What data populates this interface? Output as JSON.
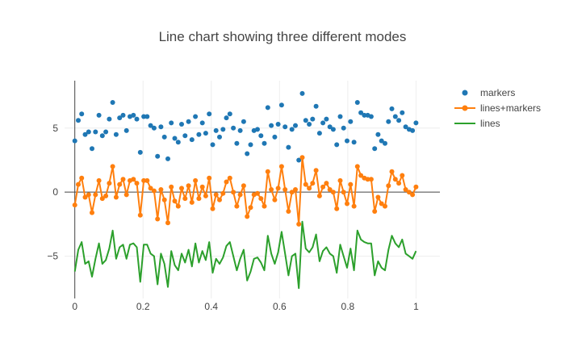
{
  "chart_data": {
    "type": "line",
    "title": "Line chart showing three different modes",
    "xlabel": "",
    "ylabel": "",
    "xlim": [
      -0.03,
      1.07
    ],
    "ylim": [
      -8.3,
      8.7
    ],
    "x_ticks": [
      0,
      0.2,
      0.4,
      0.6,
      0.8,
      1
    ],
    "x_tick_labels": [
      "0",
      "0.2",
      "0.4",
      "0.6",
      "0.8",
      "1"
    ],
    "y_ticks": [
      -5,
      0,
      5
    ],
    "y_tick_labels": [
      "−5",
      "0",
      "5"
    ],
    "grid": true,
    "legend_position": "top-right",
    "x": [
      0,
      0.0101,
      0.0202,
      0.0303,
      0.0404,
      0.0505,
      0.0606,
      0.0707,
      0.0808,
      0.0909,
      0.101,
      0.1111,
      0.1212,
      0.1313,
      0.1414,
      0.1515,
      0.1616,
      0.1717,
      0.1818,
      0.1919,
      0.202,
      0.2121,
      0.2222,
      0.2323,
      0.2424,
      0.2525,
      0.2626,
      0.2727,
      0.2828,
      0.2929,
      0.303,
      0.3131,
      0.3232,
      0.3333,
      0.3434,
      0.3535,
      0.3636,
      0.3737,
      0.3838,
      0.3939,
      0.404,
      0.4141,
      0.4242,
      0.4343,
      0.4444,
      0.4545,
      0.4646,
      0.4747,
      0.4848,
      0.4949,
      0.5051,
      0.5152,
      0.5253,
      0.5354,
      0.5455,
      0.5556,
      0.5657,
      0.5758,
      0.5859,
      0.596,
      0.6061,
      0.6162,
      0.6263,
      0.6364,
      0.6465,
      0.6566,
      0.6667,
      0.6768,
      0.6869,
      0.697,
      0.7071,
      0.7172,
      0.7273,
      0.7374,
      0.7475,
      0.7576,
      0.7677,
      0.7778,
      0.7879,
      0.798,
      0.8081,
      0.8182,
      0.8283,
      0.8384,
      0.8485,
      0.8586,
      0.8687,
      0.8788,
      0.8889,
      0.899,
      0.9091,
      0.9192,
      0.9293,
      0.9394,
      0.9495,
      0.9596,
      0.9697,
      0.9798,
      0.9899,
      1
    ],
    "series": [
      {
        "name": "markers",
        "mode": "markers",
        "color": "#1f77b4",
        "values": [
          4.0,
          5.6,
          6.1,
          4.5,
          4.7,
          3.4,
          4.7,
          6.0,
          4.4,
          4.7,
          5.7,
          7.0,
          4.5,
          5.8,
          6.0,
          4.8,
          5.9,
          6.0,
          5.7,
          3.1,
          5.9,
          5.9,
          5.2,
          5.0,
          2.8,
          5.1,
          4.3,
          2.6,
          5.4,
          4.2,
          3.9,
          5.3,
          4.4,
          5.5,
          4.1,
          5.9,
          4.5,
          5.4,
          4.6,
          6.1,
          3.7,
          4.8,
          4.3,
          4.9,
          5.8,
          6.1,
          5.0,
          3.8,
          4.8,
          5.5,
          3.0,
          3.7,
          4.8,
          4.9,
          4.4,
          3.8,
          6.6,
          5.2,
          4.3,
          5.3,
          6.8,
          5.1,
          3.5,
          4.9,
          5.2,
          2.5,
          7.7,
          5.6,
          5.3,
          5.7,
          6.7,
          4.6,
          5.4,
          5.7,
          5.1,
          4.9,
          3.7,
          5.9,
          5.0,
          4.0,
          5.5,
          3.9,
          7.0,
          6.2,
          6.0,
          6.0,
          5.9,
          3.4,
          4.5,
          4.0,
          3.8,
          5.5,
          6.5,
          5.9,
          5.6,
          6.2,
          5.1,
          4.9,
          4.8,
          5.4
        ]
      },
      {
        "name": "lines+markers",
        "mode": "lines+markers",
        "color": "#ff7f0e",
        "values": [
          -1.0,
          0.6,
          1.1,
          -0.4,
          -0.2,
          -1.6,
          -0.2,
          0.9,
          -0.5,
          -0.3,
          0.7,
          2.0,
          -0.4,
          0.6,
          1.0,
          -0.2,
          0.9,
          1.0,
          0.7,
          -1.8,
          0.9,
          0.9,
          0.3,
          0.1,
          -2.1,
          0.2,
          -0.6,
          -2.4,
          0.4,
          -0.7,
          -1.1,
          0.3,
          -0.5,
          0.5,
          -0.8,
          0.9,
          -0.5,
          0.4,
          -0.3,
          1.1,
          -1.3,
          -0.2,
          -0.6,
          -0.1,
          0.8,
          1.1,
          0.0,
          -1.1,
          -0.2,
          0.5,
          -1.9,
          -1.2,
          -0.2,
          -0.1,
          -0.5,
          -1.1,
          1.6,
          0.2,
          -0.6,
          0.3,
          2.0,
          0.2,
          -1.5,
          0.0,
          0.2,
          -2.5,
          2.7,
          0.6,
          0.3,
          0.7,
          1.7,
          -0.3,
          0.4,
          0.7,
          0.2,
          0.0,
          -1.3,
          0.9,
          0.0,
          -0.9,
          0.6,
          -1.1,
          2.0,
          1.3,
          1.1,
          1.0,
          1.0,
          -1.5,
          -0.4,
          -0.9,
          -1.1,
          0.5,
          1.6,
          1.0,
          0.7,
          1.3,
          0.2,
          0.0,
          -0.2,
          0.4
        ]
      },
      {
        "name": "lines",
        "mode": "lines",
        "color": "#2ca02c",
        "values": [
          -6.2,
          -4.5,
          -3.9,
          -5.6,
          -5.4,
          -6.6,
          -5.2,
          -4.0,
          -5.6,
          -5.3,
          -4.4,
          -3.0,
          -5.2,
          -4.3,
          -4.1,
          -5.2,
          -4.1,
          -4.0,
          -4.3,
          -7.0,
          -4.1,
          -4.1,
          -4.8,
          -5.0,
          -7.2,
          -4.8,
          -5.6,
          -7.4,
          -4.6,
          -5.7,
          -6.1,
          -4.8,
          -5.5,
          -4.5,
          -5.8,
          -4.0,
          -5.5,
          -4.6,
          -5.3,
          -3.9,
          -6.3,
          -5.2,
          -5.6,
          -5.1,
          -4.2,
          -3.9,
          -5.0,
          -6.1,
          -5.2,
          -4.5,
          -6.9,
          -6.2,
          -5.2,
          -5.1,
          -5.5,
          -6.1,
          -3.4,
          -4.8,
          -5.6,
          -4.7,
          -3.1,
          -4.8,
          -6.5,
          -5.0,
          -4.8,
          -7.5,
          -2.3,
          -4.4,
          -4.7,
          -4.3,
          -3.3,
          -5.4,
          -4.6,
          -4.3,
          -4.8,
          -5.0,
          -6.3,
          -4.1,
          -5.0,
          -5.9,
          -4.4,
          -6.1,
          -3.0,
          -3.7,
          -3.9,
          -4.0,
          -4.0,
          -6.5,
          -5.4,
          -5.9,
          -6.1,
          -4.5,
          -3.4,
          -4.0,
          -4.3,
          -3.7,
          -4.8,
          -5.0,
          -5.2,
          -4.6
        ]
      }
    ]
  }
}
